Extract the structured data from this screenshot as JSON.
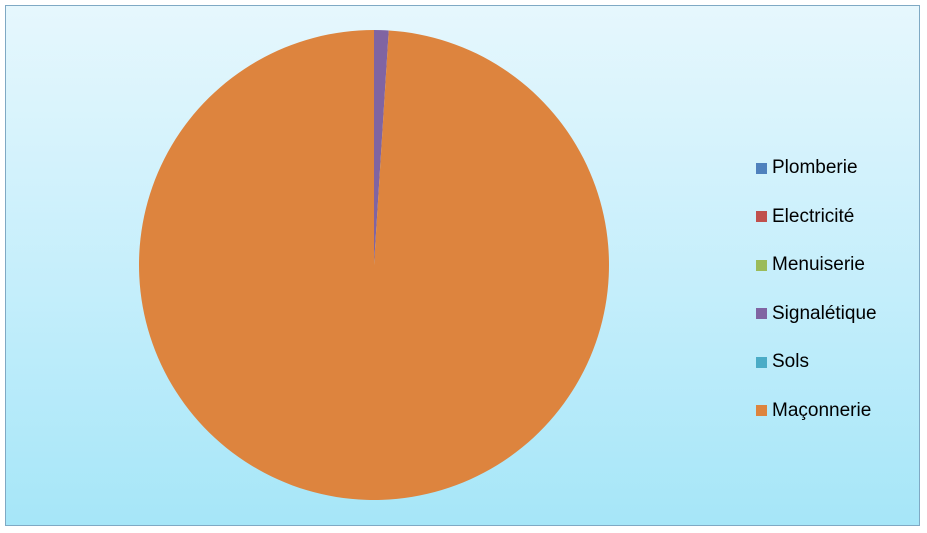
{
  "chart_data": {
    "type": "pie",
    "title": "",
    "slices": [
      {
        "label": "Plomberie",
        "value": 0,
        "color": "#4f81bd"
      },
      {
        "label": "Electricité",
        "value": 0,
        "color": "#c0504d"
      },
      {
        "label": "Menuiserie",
        "value": 0,
        "color": "#9bbb59"
      },
      {
        "label": "Signalétique",
        "value": 1,
        "color": "#8064a2"
      },
      {
        "label": "Sols",
        "value": 0,
        "color": "#4bacc6"
      },
      {
        "label": "Maçonnerie",
        "value": 99,
        "color": "#dd843e"
      }
    ],
    "legend_position": "right",
    "background": {
      "top": "#e6f7fd",
      "bottom": "#a6e6f8",
      "border": "#7fa9c4"
    }
  }
}
